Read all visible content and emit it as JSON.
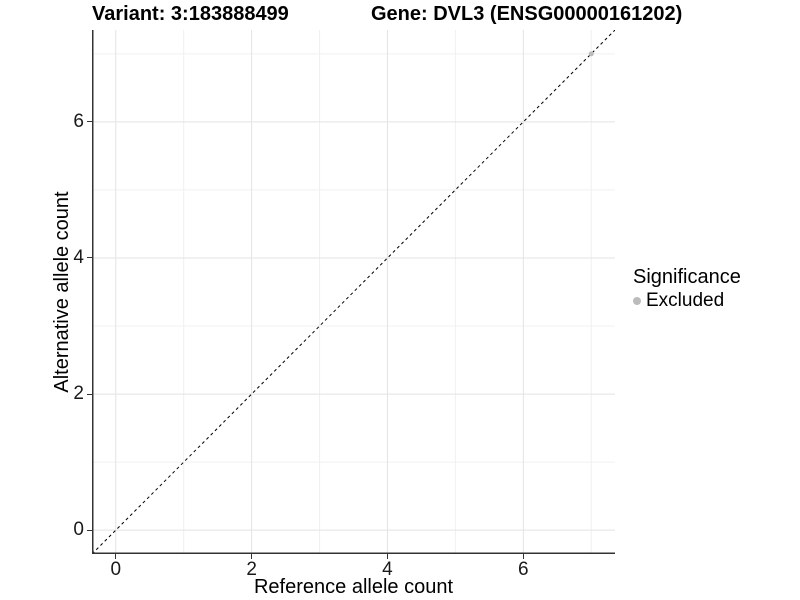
{
  "titles": {
    "variant": "Variant: 3:183888499",
    "gene": "Gene: DVL3 (ENSG00000161202)"
  },
  "axes": {
    "x_label": "Reference allele count",
    "y_label": "Alternative allele count"
  },
  "legend": {
    "title": "Significance",
    "items": [
      {
        "label": "Excluded",
        "color": "#bcbcbc"
      }
    ]
  },
  "colors": {
    "background": "#ffffff",
    "grid_major": "#e3e3e3",
    "grid_minor": "#f0f0f0",
    "axis_line": "#333333",
    "tick_mark": "#333333",
    "tick_text": "#1a1a1a",
    "reference_line": "#000000",
    "point": "#bcbcbc"
  },
  "chart_data": {
    "type": "scatter",
    "title": "Variant: 3:183888499 / Gene: DVL3 (ENSG00000161202)",
    "xlabel": "Reference allele count",
    "ylabel": "Alternative allele count",
    "xlim": [
      -0.35,
      7.35
    ],
    "ylim": [
      -0.35,
      7.35
    ],
    "x_ticks": [
      0,
      2,
      4,
      6
    ],
    "y_ticks": [
      0,
      2,
      4,
      6
    ],
    "x_minor_gridlines": [
      1,
      3,
      5,
      7
    ],
    "y_minor_gridlines": [
      1,
      3,
      5,
      7
    ],
    "grid": "on",
    "legend_position": "right",
    "series": [
      {
        "name": "Excluded",
        "color": "#bcbcbc",
        "points": [
          {
            "x": 7,
            "y": 7
          }
        ]
      }
    ],
    "reference_line": {
      "kind": "identity",
      "slope": 1,
      "intercept": 0,
      "style": "dashed"
    }
  }
}
